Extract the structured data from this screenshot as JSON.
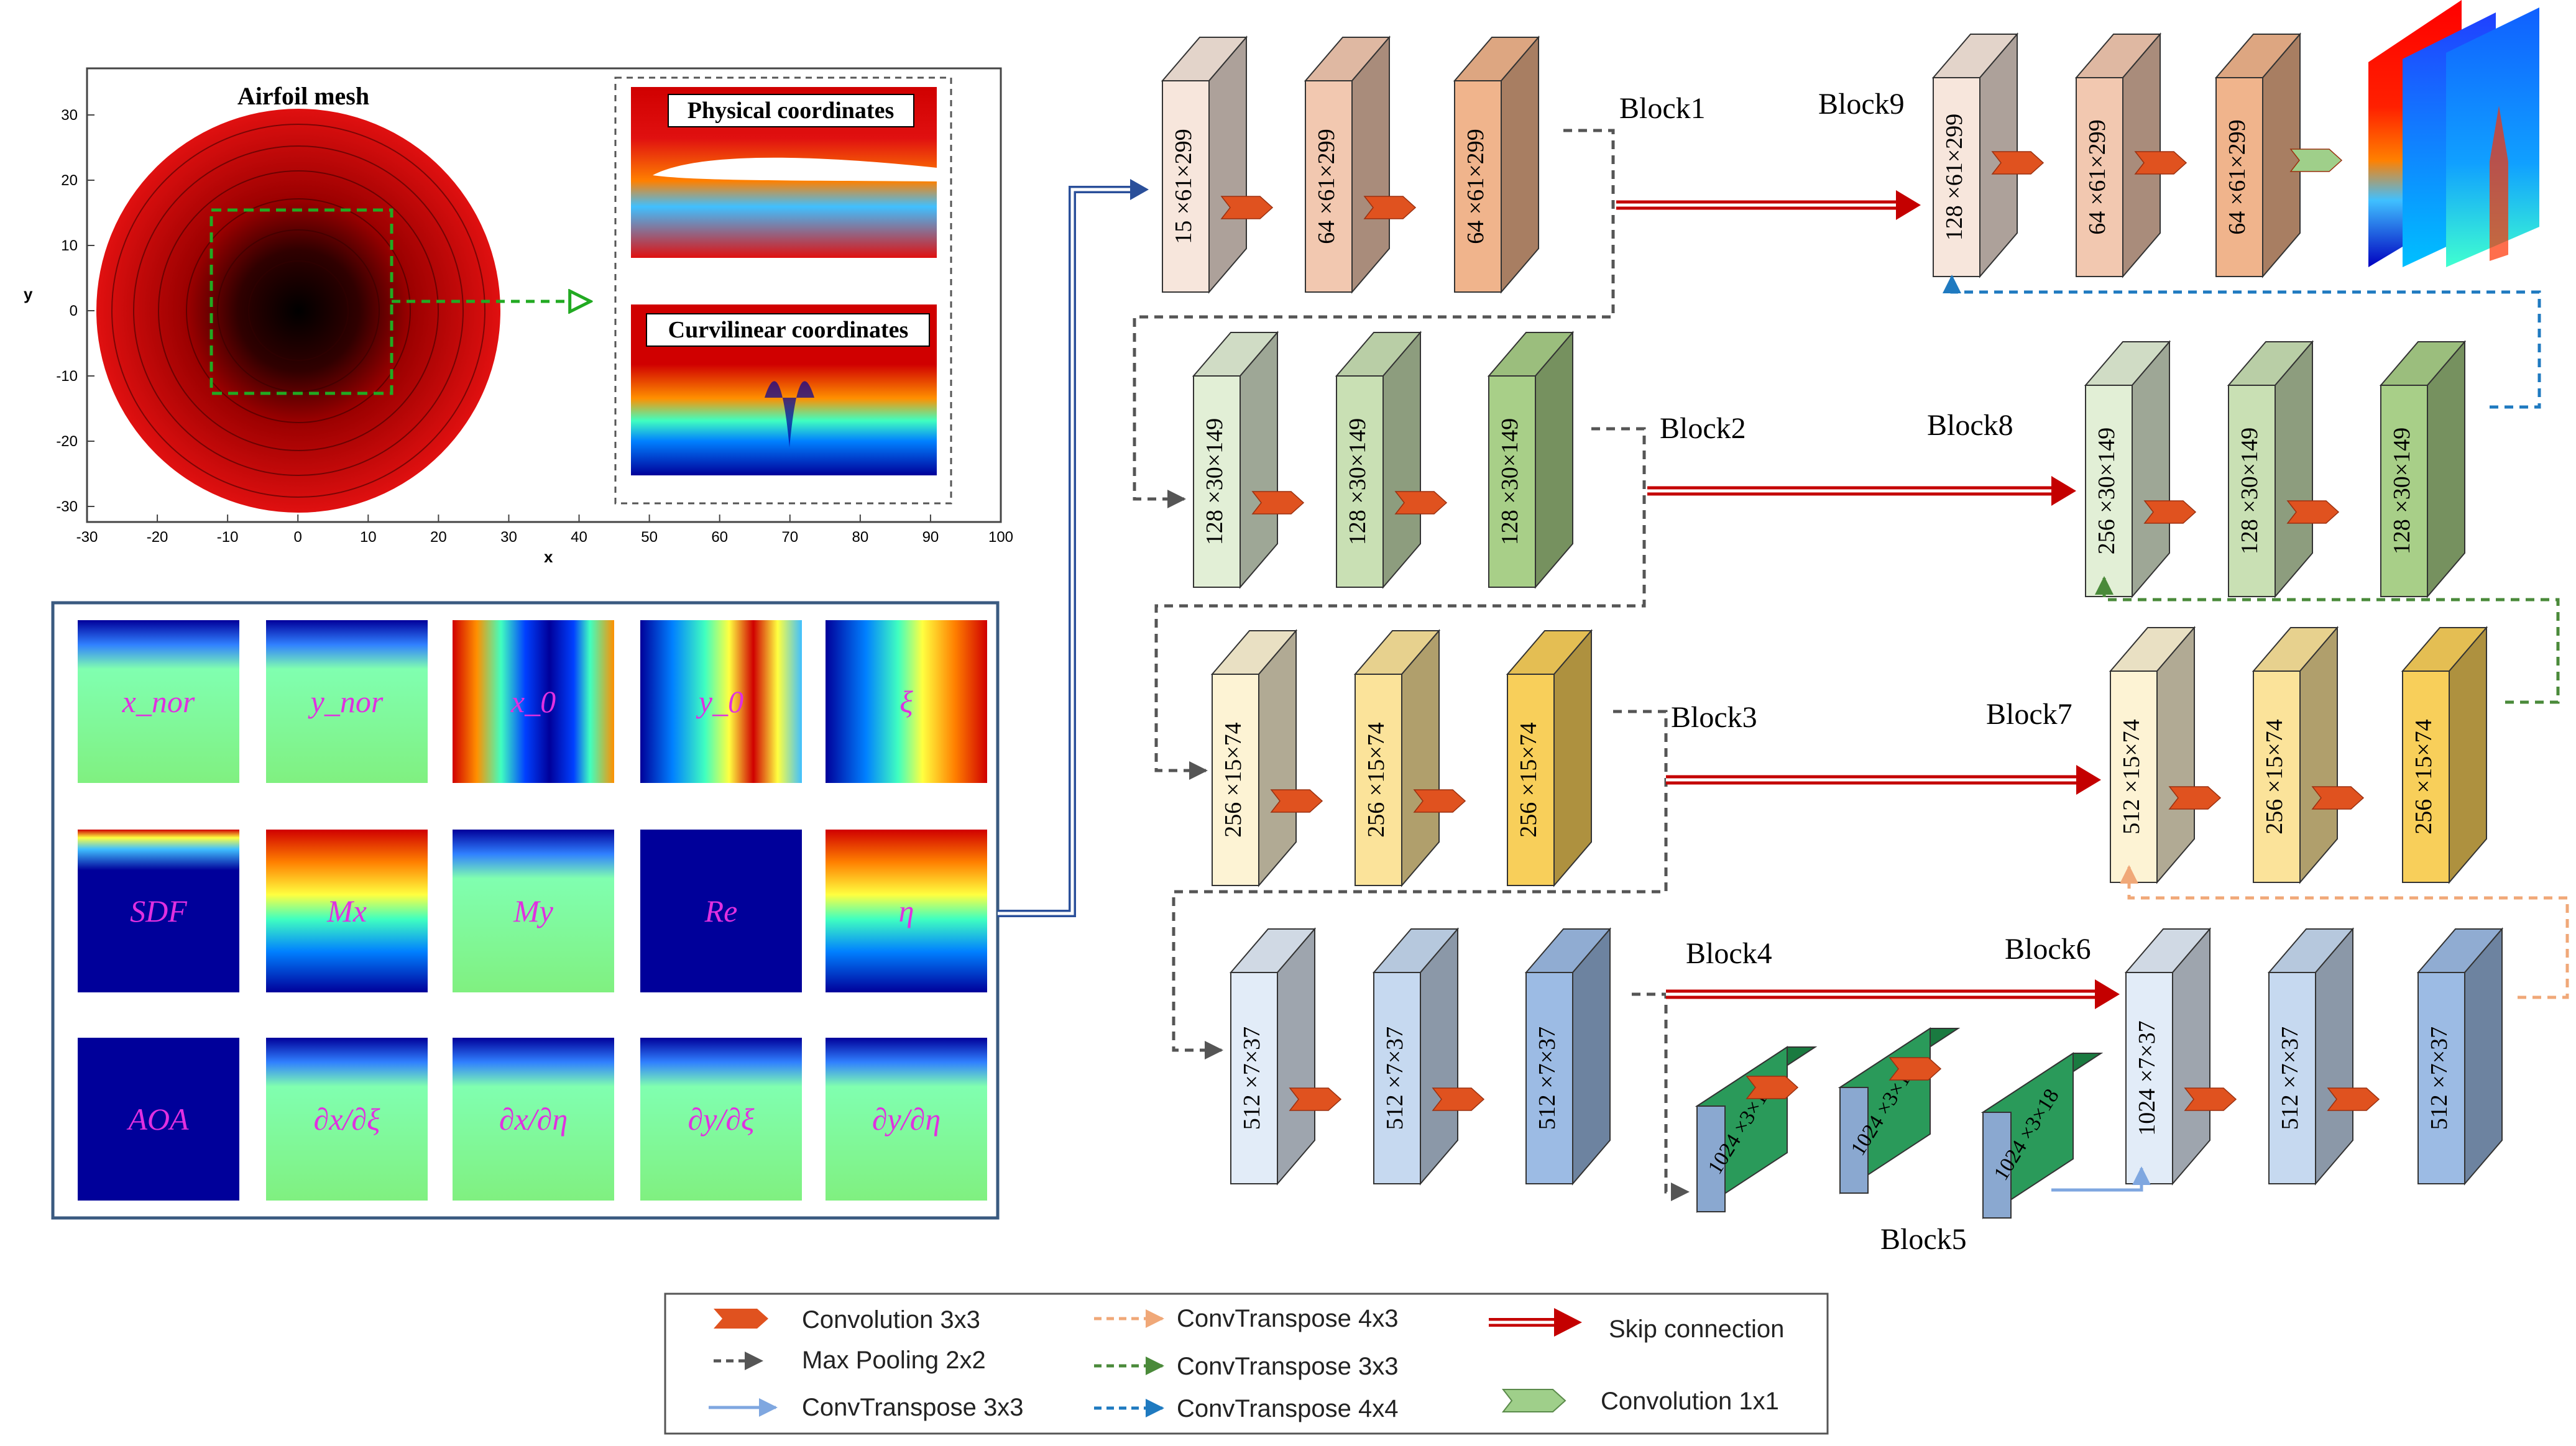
{
  "airfoil_plot": {
    "title": "Airfoil mesh",
    "xlabel": "x",
    "ylabel": "y",
    "x_ticks": [
      "-30",
      "-20",
      "-10",
      "0",
      "10",
      "20",
      "30",
      "40",
      "50",
      "60",
      "70",
      "80",
      "90",
      "100"
    ],
    "y_ticks": [
      "30",
      "20",
      "10",
      "0",
      "-10",
      "-20",
      "-30"
    ],
    "inset_top_label": "Physical coordinates",
    "inset_bottom_label": "Curvilinear coordinates"
  },
  "input_features": {
    "row1": [
      "x_nor",
      "y_nor",
      "x_0",
      "y_0",
      "ξ"
    ],
    "row2": [
      "SDF",
      "Mx",
      "My",
      "Re",
      "η"
    ],
    "row3": [
      "AOA",
      "∂x/∂ξ",
      "∂x/∂η",
      "∂y/∂ξ",
      "∂y/∂η"
    ]
  },
  "blocks": {
    "b1": {
      "label": "Block1",
      "dims": [
        "15 ×61×299",
        "64 ×61×299",
        "64 ×61×299"
      ]
    },
    "b2": {
      "label": "Block2",
      "dims": [
        "128 ×30×149",
        "128 ×30×149",
        "128 ×30×149"
      ]
    },
    "b3": {
      "label": "Block3",
      "dims": [
        "256 ×15×74",
        "256 ×15×74",
        "256 ×15×74"
      ]
    },
    "b4": {
      "label": "Block4",
      "dims": [
        "512 ×7×37",
        "512 ×7×37",
        "512 ×7×37"
      ]
    },
    "b5": {
      "label": "Block5",
      "dims": [
        "1024 ×3×18",
        "1024 ×3×18",
        "1024 ×3×18"
      ]
    },
    "b6": {
      "label": "Block6",
      "dims": [
        "1024 ×7×37",
        "512 ×7×37",
        "512 ×7×37"
      ]
    },
    "b7": {
      "label": "Block7",
      "dims": [
        "512 ×15×74",
        "256 ×15×74",
        "256 ×15×74"
      ]
    },
    "b8": {
      "label": "Block8",
      "dims": [
        "256 ×30×149",
        "128 ×30×149",
        "128 ×30×149"
      ]
    },
    "b9": {
      "label": "Block9",
      "dims": [
        "128 ×61×299",
        "64 ×61×299",
        "64 ×61×299"
      ]
    }
  },
  "legend": {
    "conv3": "Convolution 3x3",
    "maxpool": "Max Pooling 2x2",
    "convT3_blue": "ConvTranspose 3x3",
    "convT4_orange": "ConvTranspose 4x3",
    "convT3_green": "ConvTranspose 3x3",
    "convT4_blue": "ConvTranspose 4x4",
    "skip": "Skip connection",
    "conv1": "Convolution 1x1"
  },
  "colors": {
    "conv_arrow": "#e0521f",
    "conv1_arrow": "#9fcf8a",
    "skip": "#c40000",
    "maxpool": "#555555",
    "convT_lightblue": "#7fa7e0",
    "convT_orange": "#f0a878",
    "convT_green": "#4a8a3a",
    "convT_blue": "#1f7ac0",
    "input_arrow": "#2a4f9a"
  }
}
